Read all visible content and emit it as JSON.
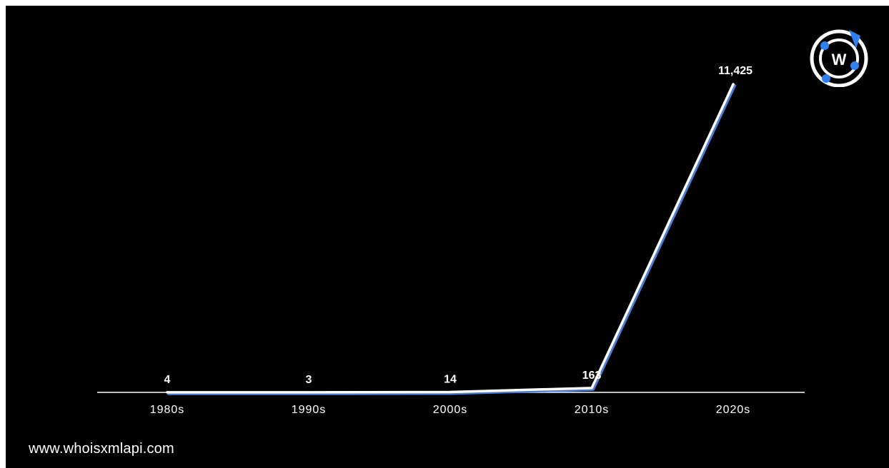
{
  "chart_data": {
    "type": "line",
    "categories": [
      "1980s",
      "1990s",
      "2000s",
      "2010s",
      "2020s"
    ],
    "series": [
      {
        "values": [
          4,
          3,
          14,
          163,
          11425
        ]
      }
    ],
    "data_labels": [
      "4",
      "3",
      "14",
      "163",
      "11,425"
    ],
    "ylim": [
      0,
      11425
    ],
    "grid": false,
    "background": "#000000",
    "line_color": "#ffffff",
    "shadow_color": "#4a7fd4"
  },
  "footer": {
    "website": "www.whoisxmlapi.com"
  },
  "logo": {
    "icon": "whoisxmlapi-logo-icon",
    "letter": "W",
    "accent_color": "#2f80ed"
  }
}
